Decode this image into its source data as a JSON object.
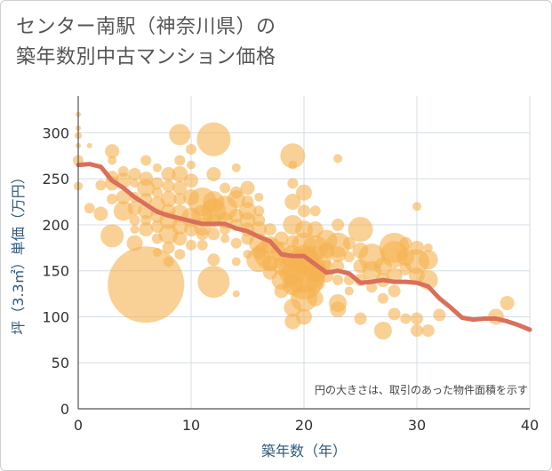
{
  "title_line1": "センター南駅（神奈川県）の",
  "title_line2": "築年数別中古マンション価格",
  "chart_data": {
    "type": "scatter",
    "xlabel": "築年数（年）",
    "ylabel": "坪（3.3㎡）単価（万円）",
    "xlim": [
      0,
      40
    ],
    "ylim": [
      0,
      340
    ],
    "xticks": [
      0,
      10,
      20,
      30,
      40
    ],
    "yticks": [
      0,
      50,
      100,
      150,
      200,
      250,
      300
    ],
    "grid": true,
    "note": "円の大きさは、取引のあった物件面積を示す",
    "colors": {
      "bubble": "#f5b350",
      "trend": "#d9705a"
    },
    "bubbles": [
      {
        "x": 0,
        "y": 320,
        "s": 3
      },
      {
        "x": 0,
        "y": 305,
        "s": 3
      },
      {
        "x": 0,
        "y": 297,
        "s": 4
      },
      {
        "x": 0,
        "y": 286,
        "s": 3
      },
      {
        "x": 0,
        "y": 270,
        "s": 6
      },
      {
        "x": 0,
        "y": 242,
        "s": 5
      },
      {
        "x": 1,
        "y": 286,
        "s": 3
      },
      {
        "x": 1,
        "y": 218,
        "s": 6
      },
      {
        "x": 2,
        "y": 243,
        "s": 6
      },
      {
        "x": 2,
        "y": 212,
        "s": 8
      },
      {
        "x": 3,
        "y": 280,
        "s": 8
      },
      {
        "x": 3,
        "y": 270,
        "s": 5
      },
      {
        "x": 3,
        "y": 252,
        "s": 7
      },
      {
        "x": 3,
        "y": 245,
        "s": 8
      },
      {
        "x": 3,
        "y": 228,
        "s": 6
      },
      {
        "x": 3,
        "y": 188,
        "s": 13
      },
      {
        "x": 4,
        "y": 258,
        "s": 6
      },
      {
        "x": 4,
        "y": 248,
        "s": 9
      },
      {
        "x": 4,
        "y": 230,
        "s": 8
      },
      {
        "x": 4,
        "y": 215,
        "s": 11
      },
      {
        "x": 5,
        "y": 255,
        "s": 7
      },
      {
        "x": 5,
        "y": 245,
        "s": 5
      },
      {
        "x": 5,
        "y": 230,
        "s": 6
      },
      {
        "x": 5,
        "y": 218,
        "s": 8
      },
      {
        "x": 5,
        "y": 205,
        "s": 6
      },
      {
        "x": 5,
        "y": 195,
        "s": 5
      },
      {
        "x": 5,
        "y": 180,
        "s": 9
      },
      {
        "x": 6,
        "y": 270,
        "s": 6
      },
      {
        "x": 6,
        "y": 250,
        "s": 8
      },
      {
        "x": 6,
        "y": 240,
        "s": 10
      },
      {
        "x": 6,
        "y": 228,
        "s": 7
      },
      {
        "x": 6,
        "y": 215,
        "s": 9
      },
      {
        "x": 6,
        "y": 205,
        "s": 6
      },
      {
        "x": 6,
        "y": 195,
        "s": 8
      },
      {
        "x": 6,
        "y": 135,
        "s": 43
      },
      {
        "x": 7,
        "y": 262,
        "s": 5
      },
      {
        "x": 7,
        "y": 245,
        "s": 7
      },
      {
        "x": 7,
        "y": 235,
        "s": 6
      },
      {
        "x": 7,
        "y": 222,
        "s": 9
      },
      {
        "x": 7,
        "y": 210,
        "s": 8
      },
      {
        "x": 7,
        "y": 198,
        "s": 7
      },
      {
        "x": 7,
        "y": 185,
        "s": 6
      },
      {
        "x": 7,
        "y": 170,
        "s": 5
      },
      {
        "x": 8,
        "y": 255,
        "s": 8
      },
      {
        "x": 8,
        "y": 242,
        "s": 7
      },
      {
        "x": 8,
        "y": 228,
        "s": 9
      },
      {
        "x": 8,
        "y": 215,
        "s": 8
      },
      {
        "x": 8,
        "y": 205,
        "s": 10
      },
      {
        "x": 8,
        "y": 190,
        "s": 11
      },
      {
        "x": 8,
        "y": 175,
        "s": 7
      },
      {
        "x": 8,
        "y": 160,
        "s": 6
      },
      {
        "x": 9,
        "y": 298,
        "s": 12
      },
      {
        "x": 9,
        "y": 270,
        "s": 6
      },
      {
        "x": 9,
        "y": 255,
        "s": 9
      },
      {
        "x": 9,
        "y": 240,
        "s": 8
      },
      {
        "x": 9,
        "y": 228,
        "s": 7
      },
      {
        "x": 9,
        "y": 212,
        "s": 10
      },
      {
        "x": 9,
        "y": 198,
        "s": 9
      },
      {
        "x": 9,
        "y": 185,
        "s": 8
      },
      {
        "x": 9,
        "y": 168,
        "s": 6
      },
      {
        "x": 10,
        "y": 282,
        "s": 6
      },
      {
        "x": 10,
        "y": 265,
        "s": 5
      },
      {
        "x": 10,
        "y": 248,
        "s": 8
      },
      {
        "x": 10,
        "y": 230,
        "s": 9
      },
      {
        "x": 10,
        "y": 208,
        "s": 11
      },
      {
        "x": 10,
        "y": 195,
        "s": 8
      },
      {
        "x": 10,
        "y": 178,
        "s": 6
      },
      {
        "x": 11,
        "y": 225,
        "s": 16
      },
      {
        "x": 11,
        "y": 210,
        "s": 12
      },
      {
        "x": 11,
        "y": 198,
        "s": 10
      },
      {
        "x": 11,
        "y": 190,
        "s": 7
      },
      {
        "x": 11,
        "y": 178,
        "s": 6
      },
      {
        "x": 12,
        "y": 293,
        "s": 19
      },
      {
        "x": 12,
        "y": 255,
        "s": 8
      },
      {
        "x": 12,
        "y": 225,
        "s": 12
      },
      {
        "x": 12,
        "y": 215,
        "s": 14
      },
      {
        "x": 12,
        "y": 205,
        "s": 8
      },
      {
        "x": 12,
        "y": 190,
        "s": 7
      },
      {
        "x": 12,
        "y": 162,
        "s": 7
      },
      {
        "x": 12,
        "y": 138,
        "s": 18
      },
      {
        "x": 13,
        "y": 240,
        "s": 6
      },
      {
        "x": 13,
        "y": 218,
        "s": 14
      },
      {
        "x": 13,
        "y": 205,
        "s": 9
      },
      {
        "x": 13,
        "y": 195,
        "s": 6
      },
      {
        "x": 13,
        "y": 185,
        "s": 5
      },
      {
        "x": 14,
        "y": 262,
        "s": 5
      },
      {
        "x": 14,
        "y": 235,
        "s": 7
      },
      {
        "x": 14,
        "y": 228,
        "s": 10
      },
      {
        "x": 14,
        "y": 210,
        "s": 8
      },
      {
        "x": 14,
        "y": 200,
        "s": 7
      },
      {
        "x": 14,
        "y": 180,
        "s": 6
      },
      {
        "x": 14,
        "y": 160,
        "s": 5
      },
      {
        "x": 14,
        "y": 125,
        "s": 4
      },
      {
        "x": 15,
        "y": 240,
        "s": 8
      },
      {
        "x": 15,
        "y": 225,
        "s": 7
      },
      {
        "x": 15,
        "y": 215,
        "s": 10
      },
      {
        "x": 15,
        "y": 205,
        "s": 9
      },
      {
        "x": 15,
        "y": 195,
        "s": 8
      },
      {
        "x": 15,
        "y": 185,
        "s": 7
      },
      {
        "x": 15,
        "y": 168,
        "s": 5
      },
      {
        "x": 16,
        "y": 230,
        "s": 5
      },
      {
        "x": 16,
        "y": 215,
        "s": 6
      },
      {
        "x": 16,
        "y": 205,
        "s": 7
      },
      {
        "x": 16,
        "y": 195,
        "s": 9
      },
      {
        "x": 16,
        "y": 180,
        "s": 11
      },
      {
        "x": 16,
        "y": 170,
        "s": 8
      },
      {
        "x": 16,
        "y": 162,
        "s": 14
      },
      {
        "x": 17,
        "y": 195,
        "s": 7
      },
      {
        "x": 17,
        "y": 178,
        "s": 10
      },
      {
        "x": 17,
        "y": 168,
        "s": 18
      },
      {
        "x": 17,
        "y": 158,
        "s": 9
      },
      {
        "x": 17,
        "y": 148,
        "s": 8
      },
      {
        "x": 18,
        "y": 185,
        "s": 8
      },
      {
        "x": 18,
        "y": 170,
        "s": 12
      },
      {
        "x": 18,
        "y": 155,
        "s": 10
      },
      {
        "x": 18,
        "y": 140,
        "s": 11
      },
      {
        "x": 18,
        "y": 128,
        "s": 8
      },
      {
        "x": 19,
        "y": 275,
        "s": 14
      },
      {
        "x": 19,
        "y": 265,
        "s": 5
      },
      {
        "x": 19,
        "y": 245,
        "s": 6
      },
      {
        "x": 19,
        "y": 225,
        "s": 9
      },
      {
        "x": 19,
        "y": 200,
        "s": 11
      },
      {
        "x": 19,
        "y": 182,
        "s": 7
      },
      {
        "x": 19,
        "y": 165,
        "s": 13
      },
      {
        "x": 19,
        "y": 150,
        "s": 16
      },
      {
        "x": 19,
        "y": 135,
        "s": 12
      },
      {
        "x": 19,
        "y": 110,
        "s": 10
      },
      {
        "x": 19,
        "y": 95,
        "s": 9
      },
      {
        "x": 20,
        "y": 235,
        "s": 9
      },
      {
        "x": 20,
        "y": 215,
        "s": 7
      },
      {
        "x": 20,
        "y": 195,
        "s": 10
      },
      {
        "x": 20,
        "y": 178,
        "s": 14
      },
      {
        "x": 20,
        "y": 162,
        "s": 17
      },
      {
        "x": 20,
        "y": 150,
        "s": 25
      },
      {
        "x": 20,
        "y": 140,
        "s": 22
      },
      {
        "x": 20,
        "y": 120,
        "s": 15
      },
      {
        "x": 20,
        "y": 100,
        "s": 9
      },
      {
        "x": 21,
        "y": 215,
        "s": 6
      },
      {
        "x": 21,
        "y": 195,
        "s": 9
      },
      {
        "x": 21,
        "y": 175,
        "s": 14
      },
      {
        "x": 21,
        "y": 160,
        "s": 18
      },
      {
        "x": 21,
        "y": 150,
        "s": 13
      },
      {
        "x": 21,
        "y": 138,
        "s": 11
      },
      {
        "x": 21,
        "y": 120,
        "s": 9
      },
      {
        "x": 22,
        "y": 183,
        "s": 12
      },
      {
        "x": 22,
        "y": 172,
        "s": 9
      },
      {
        "x": 22,
        "y": 155,
        "s": 7
      },
      {
        "x": 22,
        "y": 145,
        "s": 8
      },
      {
        "x": 23,
        "y": 272,
        "s": 5
      },
      {
        "x": 23,
        "y": 200,
        "s": 7
      },
      {
        "x": 23,
        "y": 178,
        "s": 14
      },
      {
        "x": 23,
        "y": 168,
        "s": 9
      },
      {
        "x": 23,
        "y": 155,
        "s": 7
      },
      {
        "x": 23,
        "y": 140,
        "s": 6
      },
      {
        "x": 23,
        "y": 115,
        "s": 10
      },
      {
        "x": 23,
        "y": 108,
        "s": 9
      },
      {
        "x": 24,
        "y": 180,
        "s": 7
      },
      {
        "x": 24,
        "y": 165,
        "s": 6
      },
      {
        "x": 24,
        "y": 140,
        "s": 6
      },
      {
        "x": 24,
        "y": 128,
        "s": 5
      },
      {
        "x": 25,
        "y": 195,
        "s": 14
      },
      {
        "x": 25,
        "y": 172,
        "s": 9
      },
      {
        "x": 25,
        "y": 155,
        "s": 8
      },
      {
        "x": 25,
        "y": 140,
        "s": 7
      },
      {
        "x": 25,
        "y": 98,
        "s": 7
      },
      {
        "x": 26,
        "y": 165,
        "s": 15
      },
      {
        "x": 26,
        "y": 150,
        "s": 11
      },
      {
        "x": 26,
        "y": 132,
        "s": 6
      },
      {
        "x": 27,
        "y": 155,
        "s": 10
      },
      {
        "x": 27,
        "y": 140,
        "s": 8
      },
      {
        "x": 27,
        "y": 120,
        "s": 6
      },
      {
        "x": 27,
        "y": 85,
        "s": 10
      },
      {
        "x": 28,
        "y": 175,
        "s": 17
      },
      {
        "x": 28,
        "y": 168,
        "s": 15
      },
      {
        "x": 28,
        "y": 145,
        "s": 9
      },
      {
        "x": 28,
        "y": 128,
        "s": 7
      },
      {
        "x": 28,
        "y": 103,
        "s": 7
      },
      {
        "x": 29,
        "y": 180,
        "s": 7
      },
      {
        "x": 29,
        "y": 165,
        "s": 10
      },
      {
        "x": 29,
        "y": 152,
        "s": 7
      },
      {
        "x": 29,
        "y": 98,
        "s": 6
      },
      {
        "x": 30,
        "y": 220,
        "s": 5
      },
      {
        "x": 30,
        "y": 175,
        "s": 8
      },
      {
        "x": 30,
        "y": 160,
        "s": 14
      },
      {
        "x": 30,
        "y": 145,
        "s": 9
      },
      {
        "x": 30,
        "y": 98,
        "s": 7
      },
      {
        "x": 30,
        "y": 85,
        "s": 7
      },
      {
        "x": 31,
        "y": 175,
        "s": 5
      },
      {
        "x": 31,
        "y": 162,
        "s": 11
      },
      {
        "x": 31,
        "y": 140,
        "s": 11
      },
      {
        "x": 31,
        "y": 85,
        "s": 7
      },
      {
        "x": 32,
        "y": 102,
        "s": 7
      },
      {
        "x": 37,
        "y": 100,
        "s": 9
      },
      {
        "x": 38,
        "y": 115,
        "s": 8
      }
    ],
    "trend": [
      {
        "x": 0,
        "y": 265
      },
      {
        "x": 1,
        "y": 266
      },
      {
        "x": 2,
        "y": 263
      },
      {
        "x": 3,
        "y": 248
      },
      {
        "x": 4,
        "y": 240
      },
      {
        "x": 5,
        "y": 230
      },
      {
        "x": 6,
        "y": 222
      },
      {
        "x": 7,
        "y": 214
      },
      {
        "x": 8,
        "y": 210
      },
      {
        "x": 9,
        "y": 207
      },
      {
        "x": 10,
        "y": 204
      },
      {
        "x": 11,
        "y": 201
      },
      {
        "x": 12,
        "y": 201
      },
      {
        "x": 13,
        "y": 201
      },
      {
        "x": 14,
        "y": 196
      },
      {
        "x": 15,
        "y": 193
      },
      {
        "x": 16,
        "y": 187
      },
      {
        "x": 17,
        "y": 182
      },
      {
        "x": 18,
        "y": 168
      },
      {
        "x": 19,
        "y": 166
      },
      {
        "x": 20,
        "y": 166
      },
      {
        "x": 21,
        "y": 157
      },
      {
        "x": 22,
        "y": 148
      },
      {
        "x": 23,
        "y": 150
      },
      {
        "x": 24,
        "y": 147
      },
      {
        "x": 25,
        "y": 137
      },
      {
        "x": 26,
        "y": 138
      },
      {
        "x": 27,
        "y": 140
      },
      {
        "x": 28,
        "y": 138
      },
      {
        "x": 29,
        "y": 138
      },
      {
        "x": 30,
        "y": 137
      },
      {
        "x": 31,
        "y": 133
      },
      {
        "x": 32,
        "y": 120
      },
      {
        "x": 33,
        "y": 110
      },
      {
        "x": 34,
        "y": 99
      },
      {
        "x": 35,
        "y": 97
      },
      {
        "x": 36,
        "y": 98
      },
      {
        "x": 37,
        "y": 98
      },
      {
        "x": 38,
        "y": 95
      },
      {
        "x": 39,
        "y": 91
      },
      {
        "x": 40,
        "y": 86
      }
    ]
  }
}
